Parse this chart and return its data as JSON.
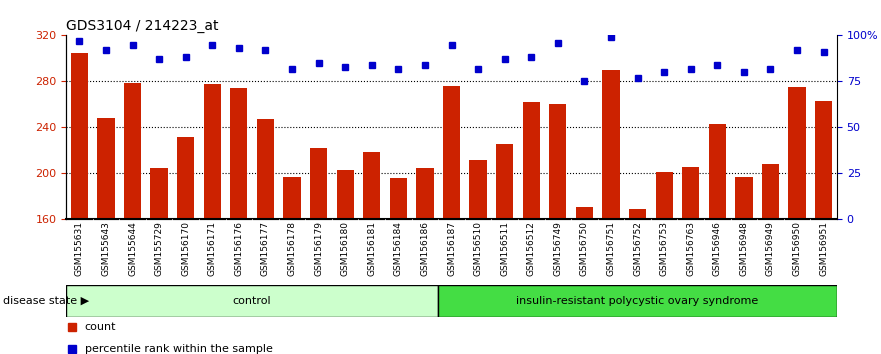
{
  "title": "GDS3104 / 214223_at",
  "categories": [
    "GSM155631",
    "GSM155643",
    "GSM155644",
    "GSM155729",
    "GSM156170",
    "GSM156171",
    "GSM156176",
    "GSM156177",
    "GSM156178",
    "GSM156179",
    "GSM156180",
    "GSM156181",
    "GSM156184",
    "GSM156186",
    "GSM156187",
    "GSM156510",
    "GSM156511",
    "GSM156512",
    "GSM156749",
    "GSM156750",
    "GSM156751",
    "GSM156752",
    "GSM156753",
    "GSM156763",
    "GSM156946",
    "GSM156948",
    "GSM156949",
    "GSM156950",
    "GSM156951"
  ],
  "bar_values": [
    305,
    248,
    279,
    205,
    232,
    278,
    274,
    247,
    197,
    222,
    203,
    219,
    196,
    205,
    276,
    212,
    226,
    262,
    260,
    171,
    290,
    169,
    201,
    206,
    243,
    197,
    208,
    275,
    263
  ],
  "percentile_ranks": [
    97,
    92,
    95,
    87,
    88,
    95,
    93,
    92,
    82,
    85,
    83,
    84,
    82,
    84,
    95,
    82,
    87,
    88,
    96,
    75,
    99,
    77,
    80,
    82,
    84,
    80,
    82,
    92,
    91
  ],
  "group_labels": [
    "control",
    "insulin-resistant polycystic ovary syndrome"
  ],
  "group_split": 14,
  "light_green": "#ccffcc",
  "dark_green": "#44dd44",
  "bar_color": "#cc2200",
  "dot_color": "#0000cc",
  "ylim_left": [
    160,
    320
  ],
  "ylim_right": [
    0,
    100
  ],
  "yticks_left": [
    160,
    200,
    240,
    280,
    320
  ],
  "yticks_right": [
    0,
    25,
    50,
    75,
    100
  ],
  "grid_values": [
    200,
    240,
    280
  ],
  "left_tick_color": "#cc2200",
  "right_tick_color": "#0000cc",
  "title_fontsize": 10,
  "bar_tick_fontsize": 6.5,
  "legend_items": [
    "count",
    "percentile rank within the sample"
  ],
  "disease_state_label": "disease state"
}
